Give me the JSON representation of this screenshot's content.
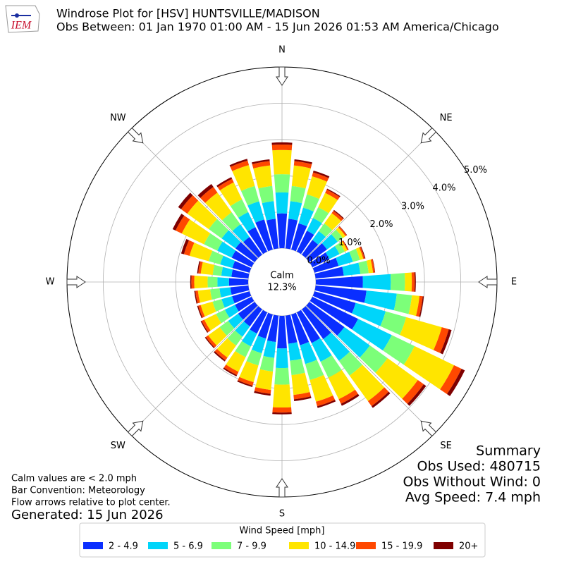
{
  "chart_data": {
    "type": "windrose",
    "logo_text": "IEM",
    "title": "Windrose Plot for [HSV] HUNTSVILLE/MADISON",
    "subtitle": "Obs Between: 01 Jan 1970 01:00 AM - 15 Jun 2026 01:53 AM America/Chicago",
    "compass_labels": [
      "N",
      "NE",
      "E",
      "SE",
      "S",
      "SW",
      "W",
      "NW"
    ],
    "calm": {
      "label": "Calm",
      "value": 12.3,
      "value_label": "12.3%"
    },
    "rlim": [
      0,
      5
    ],
    "rticks": [
      {
        "value": 0,
        "label": "0.0%"
      },
      {
        "value": 1,
        "label": "1.0%"
      },
      {
        "value": 2,
        "label": "2.0%"
      },
      {
        "value": 3,
        "label": "3.0%"
      },
      {
        "value": 4,
        "label": "4.0%"
      },
      {
        "value": 5,
        "label": "5.0%"
      }
    ],
    "x": [
      0,
      10,
      20,
      30,
      40,
      50,
      60,
      70,
      80,
      90,
      100,
      110,
      120,
      130,
      140,
      150,
      160,
      170,
      180,
      190,
      200,
      210,
      220,
      230,
      240,
      250,
      260,
      270,
      280,
      290,
      300,
      310,
      320,
      330,
      340,
      350
    ],
    "legend_title": "Wind Speed [mph]",
    "series": [
      {
        "name": "2 - 4.9",
        "color": "#0a2eff",
        "values": [
          0.96,
          0.82,
          0.75,
          0.64,
          0.5,
          0.6,
          0.52,
          0.69,
          0.78,
          1.3,
          1.41,
          1.18,
          1.4,
          1.19,
          1.01,
          0.94,
          0.88,
          0.78,
          0.9,
          0.73,
          0.69,
          0.65,
          0.58,
          0.56,
          0.51,
          0.5,
          0.5,
          0.53,
          0.47,
          0.49,
          0.61,
          0.65,
          0.6,
          0.75,
          0.86,
          0.82
        ]
      },
      {
        "name": "5 - 6.9",
        "color": "#00d5fa",
        "values": [
          0.58,
          0.49,
          0.45,
          0.39,
          0.3,
          0.36,
          0.31,
          0.41,
          0.46,
          0.77,
          0.84,
          0.86,
          1.03,
          0.87,
          0.74,
          0.57,
          0.54,
          0.47,
          0.54,
          0.44,
          0.42,
          0.39,
          0.35,
          0.34,
          0.31,
          0.3,
          0.3,
          0.32,
          0.28,
          0.35,
          0.44,
          0.47,
          0.43,
          0.46,
          0.52,
          0.49
        ]
      },
      {
        "name": "7 - 9.9",
        "color": "#7cff79",
        "values": [
          0.5,
          0.42,
          0.38,
          0.33,
          0.26,
          0.18,
          0.16,
          0.2,
          0.23,
          0.39,
          0.42,
          0.59,
          0.7,
          0.6,
          0.5,
          0.49,
          0.46,
          0.4,
          0.46,
          0.38,
          0.35,
          0.33,
          0.3,
          0.29,
          0.27,
          0.26,
          0.26,
          0.27,
          0.24,
          0.33,
          0.41,
          0.44,
          0.41,
          0.39,
          0.44,
          0.42
        ]
      },
      {
        "name": "10 - 14.9",
        "color": "#ffe500",
        "values": [
          0.67,
          0.57,
          0.52,
          0.44,
          0.35,
          0.09,
          0.08,
          0.1,
          0.12,
          0.19,
          0.21,
          1.02,
          1.21,
          1.03,
          0.87,
          0.66,
          0.62,
          0.55,
          0.63,
          0.51,
          0.48,
          0.45,
          0.41,
          0.39,
          0.36,
          0.34,
          0.34,
          0.37,
          0.33,
          0.55,
          0.68,
          0.73,
          0.67,
          0.52,
          0.6,
          0.57
        ]
      },
      {
        "name": "15 - 19.9",
        "color": "#ff4800",
        "values": [
          0.15,
          0.12,
          0.11,
          0.1,
          0.08,
          0.04,
          0.03,
          0.04,
          0.05,
          0.08,
          0.09,
          0.2,
          0.23,
          0.2,
          0.17,
          0.14,
          0.13,
          0.12,
          0.14,
          0.11,
          0.1,
          0.1,
          0.09,
          0.08,
          0.08,
          0.07,
          0.07,
          0.08,
          0.07,
          0.16,
          0.19,
          0.21,
          0.19,
          0.11,
          0.13,
          0.12
        ]
      },
      {
        "name": "20+",
        "color": "#7f0000",
        "values": [
          0.06,
          0.05,
          0.05,
          0.03,
          0.03,
          0.01,
          0.01,
          0.02,
          0.01,
          0.03,
          0.03,
          0.08,
          0.1,
          0.08,
          0.06,
          0.06,
          0.05,
          0.05,
          0.05,
          0.05,
          0.04,
          0.04,
          0.04,
          0.03,
          0.03,
          0.03,
          0.03,
          0.03,
          0.03,
          0.08,
          0.09,
          0.1,
          0.1,
          0.05,
          0.05,
          0.05
        ]
      }
    ],
    "summary": [
      "Summary",
      "Obs Used: 480715",
      "Obs Without Wind: 0",
      "Avg Speed: 7.4 mph"
    ],
    "notes": [
      "Calm values are < 2.0 mph",
      "Bar Convention: Meteorology",
      "Flow arrows relative to plot center."
    ],
    "generated": "Generated: 15 Jun 2026"
  }
}
